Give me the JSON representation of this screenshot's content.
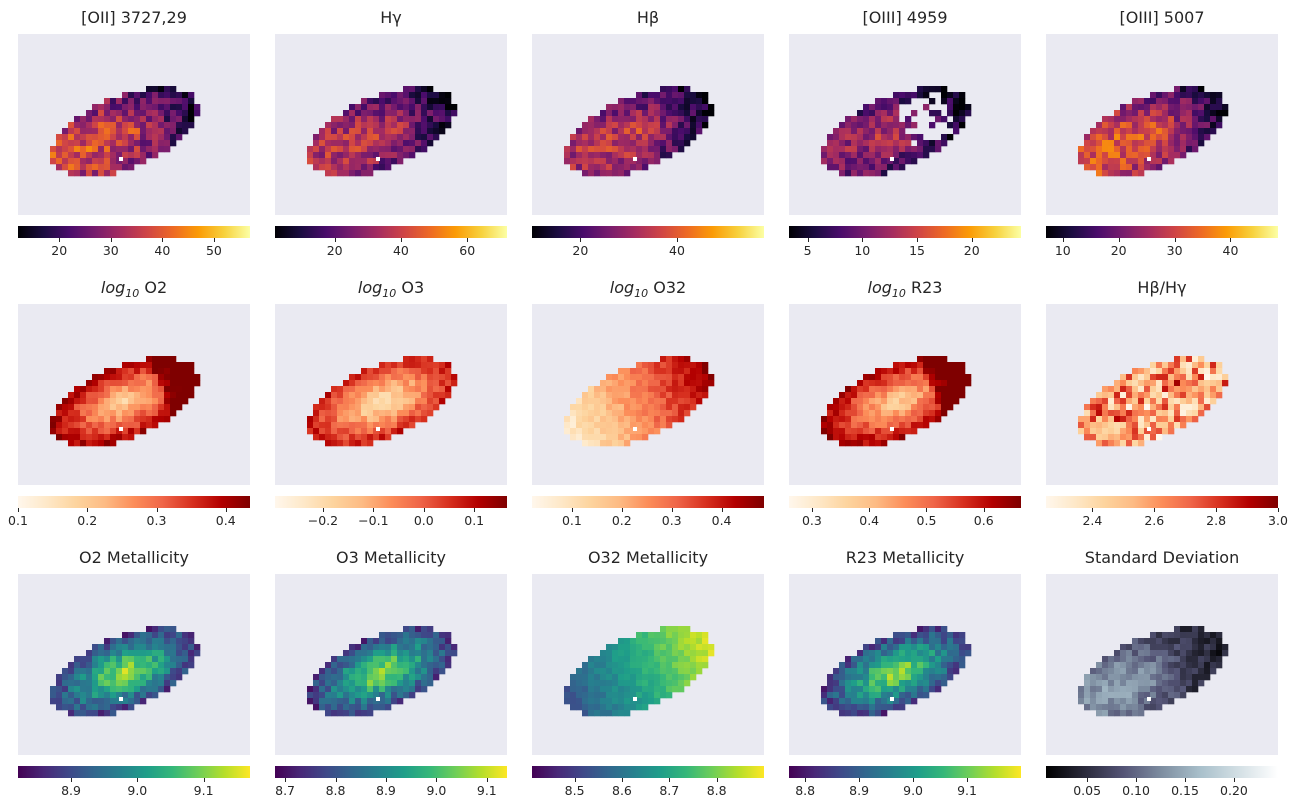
{
  "chart_data": [
    {
      "type": "heatmap",
      "title": "[OII] 3727,29",
      "cmap": "inferno",
      "colorbar": {
        "range": [
          12,
          57
        ],
        "ticks": [
          20,
          30,
          40,
          50
        ],
        "labels": [
          "20",
          "30",
          "40",
          "50"
        ]
      }
    },
    {
      "type": "heatmap",
      "title": "Hγ",
      "cmap": "inferno",
      "colorbar": {
        "range": [
          2,
          72
        ],
        "ticks": [
          20,
          40,
          60
        ],
        "labels": [
          "20",
          "40",
          "60"
        ]
      }
    },
    {
      "type": "heatmap",
      "title": "Hβ",
      "cmap": "inferno",
      "colorbar": {
        "range": [
          10,
          58
        ],
        "ticks": [
          20,
          40
        ],
        "labels": [
          "20",
          "40"
        ]
      }
    },
    {
      "type": "heatmap",
      "title": "[OIII] 4959",
      "cmap": "inferno",
      "colorbar": {
        "range": [
          3.3,
          24.5
        ],
        "ticks": [
          5,
          10,
          15,
          20
        ],
        "labels": [
          "5",
          "10",
          "15",
          "20"
        ]
      }
    },
    {
      "type": "heatmap",
      "title": "[OIII] 5007",
      "cmap": "inferno",
      "colorbar": {
        "range": [
          7,
          48.5
        ],
        "ticks": [
          10,
          20,
          30,
          40
        ],
        "labels": [
          "10",
          "20",
          "30",
          "40"
        ]
      }
    },
    {
      "type": "heatmap",
      "title": "log10 O2",
      "cmap": "OrRd",
      "colorbar": {
        "range": [
          0.1,
          0.435
        ],
        "ticks": [
          0.1,
          0.2,
          0.3,
          0.4
        ],
        "labels": [
          "0.1",
          "0.2",
          "0.3",
          "0.4"
        ]
      }
    },
    {
      "type": "heatmap",
      "title": "log10 O3",
      "cmap": "OrRd",
      "colorbar": {
        "range": [
          -0.295,
          0.165
        ],
        "ticks": [
          -0.2,
          -0.1,
          0.0,
          0.1
        ],
        "labels": [
          "−0.2",
          "−0.1",
          "0.0",
          "0.1"
        ]
      }
    },
    {
      "type": "heatmap",
      "title": "log10 O32",
      "cmap": "OrRd",
      "colorbar": {
        "range": [
          0.02,
          0.485
        ],
        "ticks": [
          0.1,
          0.2,
          0.3,
          0.4
        ],
        "labels": [
          "0.1",
          "0.2",
          "0.3",
          "0.4"
        ]
      }
    },
    {
      "type": "heatmap",
      "title": "log10 R23",
      "cmap": "OrRd",
      "colorbar": {
        "range": [
          0.26,
          0.665
        ],
        "ticks": [
          0.3,
          0.4,
          0.5,
          0.6
        ],
        "labels": [
          "0.3",
          "0.4",
          "0.5",
          "0.6"
        ]
      }
    },
    {
      "type": "heatmap",
      "title": "Hβ/Hγ",
      "cmap": "OrRd",
      "colorbar": {
        "range": [
          2.25,
          3.0
        ],
        "ticks": [
          2.4,
          2.6,
          2.8,
          3.0
        ],
        "labels": [
          "2.4",
          "2.6",
          "2.8",
          "3.0"
        ]
      }
    },
    {
      "type": "heatmap",
      "title": "O2 Metallicity",
      "cmap": "viridis",
      "colorbar": {
        "range": [
          8.82,
          9.17
        ],
        "ticks": [
          8.9,
          9.0,
          9.1
        ],
        "labels": [
          "8.9",
          "9.0",
          "9.1"
        ]
      }
    },
    {
      "type": "heatmap",
      "title": "O3 Metallicity",
      "cmap": "viridis",
      "colorbar": {
        "range": [
          8.68,
          9.14
        ],
        "ticks": [
          8.7,
          8.8,
          8.9,
          9.0,
          9.1
        ],
        "labels": [
          "8.7",
          "8.8",
          "8.9",
          "9.0",
          "9.1"
        ]
      }
    },
    {
      "type": "heatmap",
      "title": "O32 Metallicity",
      "cmap": "viridis",
      "colorbar": {
        "range": [
          8.41,
          8.9
        ],
        "ticks": [
          8.5,
          8.6,
          8.7,
          8.8
        ],
        "labels": [
          "8.5",
          "8.6",
          "8.7",
          "8.8"
        ]
      }
    },
    {
      "type": "heatmap",
      "title": "R23 Metallicity",
      "cmap": "viridis",
      "colorbar": {
        "range": [
          8.77,
          9.2
        ],
        "ticks": [
          8.8,
          8.9,
          9.0,
          9.1
        ],
        "labels": [
          "8.8",
          "8.9",
          "9.0",
          "9.1"
        ]
      }
    },
    {
      "type": "heatmap",
      "title": "Standard Deviation",
      "cmap": "bone",
      "colorbar": {
        "range": [
          0.008,
          0.245
        ],
        "ticks": [
          0.05,
          0.1,
          0.15,
          0.2
        ],
        "labels": [
          "0.05",
          "0.10",
          "0.15",
          "0.20"
        ]
      }
    }
  ]
}
